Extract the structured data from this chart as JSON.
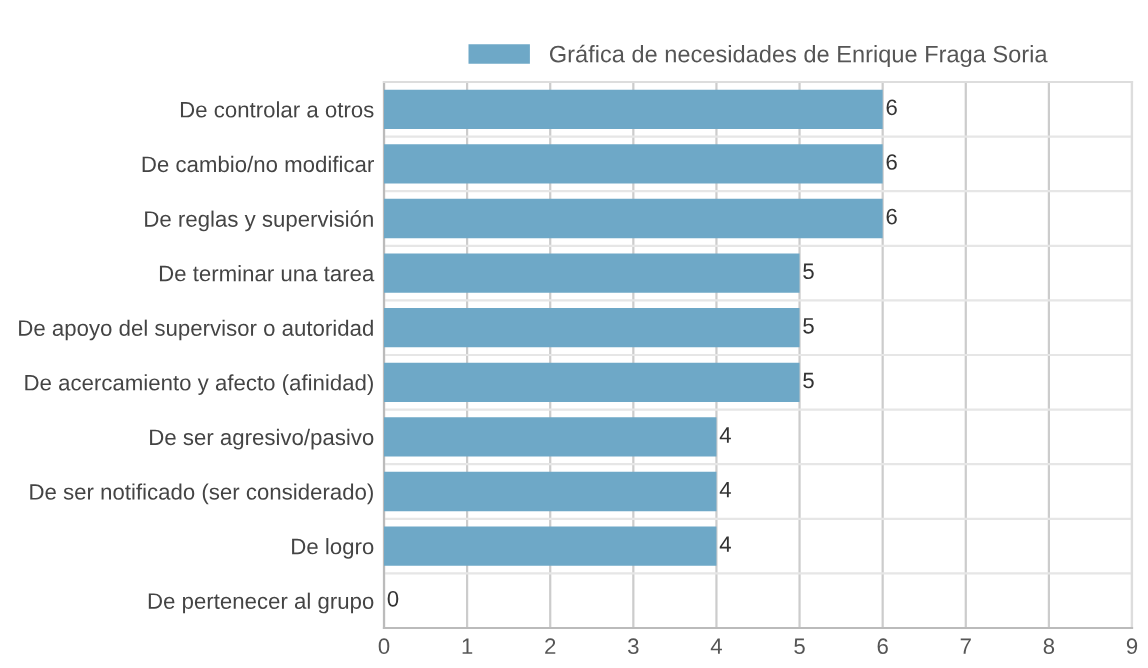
{
  "chart_data": {
    "type": "bar",
    "orientation": "horizontal",
    "categories": [
      "De controlar a otros",
      "De cambio/no modificar",
      "De reglas y supervisión",
      "De terminar una tarea",
      "De apoyo del supervisor o autoridad",
      "De acercamiento y afecto (afinidad)",
      "De ser agresivo/pasivo",
      "De ser notificado (ser considerado)",
      "De logro",
      "De pertenecer al grupo"
    ],
    "series": [
      {
        "name": "Gráfica de necesidades de Enrique Fraga Soria",
        "color": "#6ea8c7",
        "values": [
          6,
          6,
          6,
          5,
          5,
          5,
          4,
          4,
          4,
          0
        ]
      }
    ],
    "xlim": [
      0,
      9
    ],
    "xticks": [
      0,
      1,
      2,
      3,
      4,
      5,
      6,
      7,
      8,
      9
    ],
    "grid": true,
    "legend": "top",
    "data_labels": true
  }
}
